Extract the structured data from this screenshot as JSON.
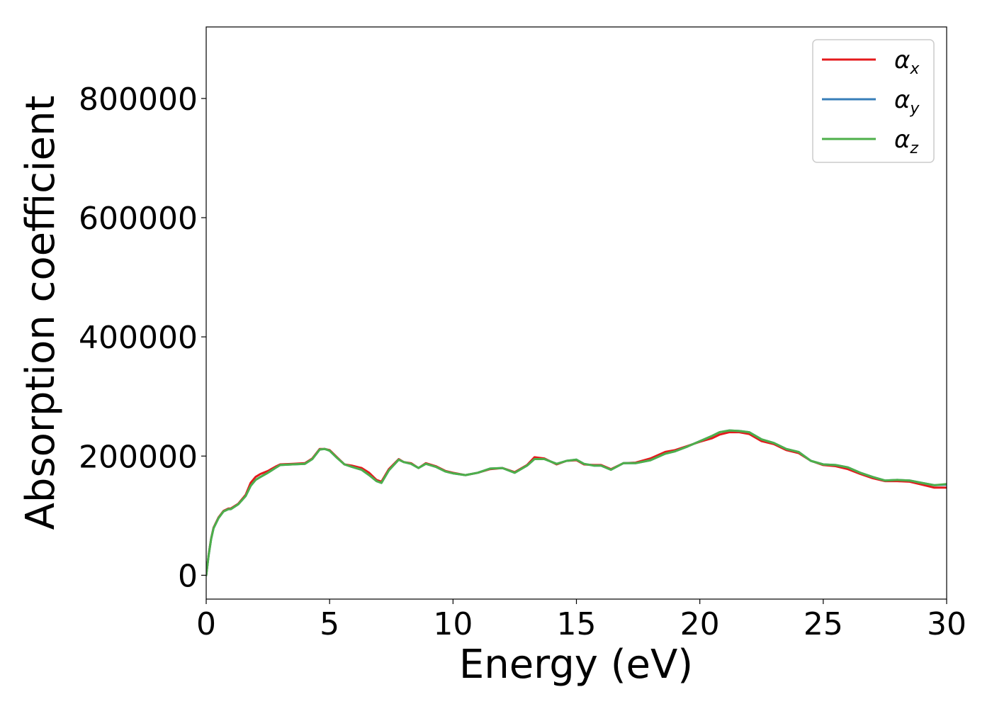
{
  "chart_data": {
    "type": "line",
    "xlabel": "Energy (eV)",
    "ylabel": "Absorption coefficient",
    "xlim": [
      0,
      30
    ],
    "ylim": [
      -40000,
      920000
    ],
    "xticks": [
      0,
      5,
      10,
      15,
      20,
      25,
      30
    ],
    "yticks": [
      0,
      200000,
      400000,
      600000,
      800000
    ],
    "grid": false,
    "legend_position": "top-right",
    "x": [
      0,
      0.1,
      0.2,
      0.3,
      0.5,
      0.7,
      0.9,
      1.0,
      1.3,
      1.6,
      1.8,
      2.0,
      2.2,
      2.5,
      2.8,
      3.0,
      3.5,
      4.0,
      4.3,
      4.6,
      4.8,
      5.0,
      5.3,
      5.6,
      5.9,
      6.3,
      6.6,
      6.9,
      7.1,
      7.4,
      7.8,
      8.0,
      8.3,
      8.6,
      8.9,
      9.3,
      9.7,
      10.0,
      10.5,
      11.0,
      11.5,
      12.0,
      12.5,
      13.0,
      13.3,
      13.7,
      14.2,
      14.6,
      15.0,
      15.3,
      15.7,
      16.0,
      16.4,
      16.9,
      17.4,
      18.0,
      18.6,
      19.0,
      19.5,
      20.0,
      20.5,
      20.8,
      21.2,
      21.6,
      22.0,
      22.5,
      23.0,
      23.5,
      24.0,
      24.5,
      25.0,
      25.5,
      26.0,
      26.5,
      27.0,
      27.5,
      28.0,
      28.5,
      29.0,
      29.5,
      30.0
    ],
    "series": [
      {
        "name": "α",
        "sub": "x",
        "color": "#e41a1c",
        "values": [
          0,
          35000,
          62000,
          80000,
          97000,
          108000,
          112000,
          112000,
          120000,
          135000,
          155000,
          165000,
          170000,
          175000,
          182000,
          186000,
          187000,
          188000,
          196000,
          212000,
          212000,
          210000,
          198000,
          186000,
          184000,
          180000,
          172000,
          160000,
          157000,
          178000,
          195000,
          190000,
          188000,
          180000,
          188000,
          183000,
          175000,
          172000,
          168000,
          172000,
          178000,
          180000,
          173000,
          185000,
          198000,
          196000,
          186000,
          192000,
          193000,
          186000,
          185000,
          185000,
          178000,
          188000,
          189000,
          196000,
          207000,
          210000,
          217000,
          224000,
          230000,
          236000,
          240000,
          240000,
          237000,
          225000,
          220000,
          210000,
          205000,
          192000,
          185000,
          183000,
          178000,
          170000,
          163000,
          158000,
          158000,
          157000,
          152000,
          147000,
          147000
        ]
      },
      {
        "name": "α",
        "sub": "y",
        "color": "#377eb8",
        "values": [
          0,
          34000,
          61000,
          79000,
          96000,
          107000,
          111000,
          111000,
          119000,
          133000,
          150000,
          160000,
          165000,
          172000,
          180000,
          185000,
          186000,
          187000,
          195000,
          211000,
          212000,
          209000,
          197000,
          186000,
          182000,
          177000,
          168000,
          158000,
          155000,
          176000,
          194000,
          190000,
          187000,
          180000,
          187000,
          182000,
          174000,
          171000,
          168000,
          172000,
          179000,
          180000,
          172000,
          184000,
          195000,
          195000,
          187000,
          192000,
          194000,
          187000,
          184000,
          184000,
          177000,
          188000,
          188000,
          193000,
          204000,
          208000,
          216000,
          225000,
          234000,
          240000,
          243000,
          242000,
          240000,
          228000,
          222000,
          212000,
          207000,
          192000,
          186000,
          185000,
          181000,
          172000,
          165000,
          159000,
          160000,
          159000,
          155000,
          151000,
          152000
        ]
      },
      {
        "name": "α",
        "sub": "z",
        "color": "#4daf4a",
        "values": [
          0,
          34000,
          61000,
          79000,
          96000,
          107000,
          111000,
          111000,
          119000,
          133000,
          150000,
          160000,
          165000,
          172000,
          180000,
          185000,
          186000,
          187000,
          195000,
          211000,
          212000,
          209000,
          197000,
          186000,
          182000,
          177000,
          168000,
          158000,
          155000,
          176000,
          194000,
          190000,
          187000,
          180000,
          187000,
          182000,
          174000,
          171000,
          168000,
          172000,
          179000,
          180000,
          172000,
          184000,
          195000,
          195000,
          187000,
          192000,
          194000,
          187000,
          184000,
          184000,
          177000,
          188000,
          188000,
          193000,
          204000,
          208000,
          216000,
          225000,
          234000,
          240000,
          243000,
          242000,
          240000,
          228000,
          222000,
          212000,
          207000,
          192000,
          186000,
          185000,
          181000,
          172000,
          165000,
          159000,
          160000,
          159000,
          155000,
          151000,
          153000
        ]
      }
    ]
  }
}
